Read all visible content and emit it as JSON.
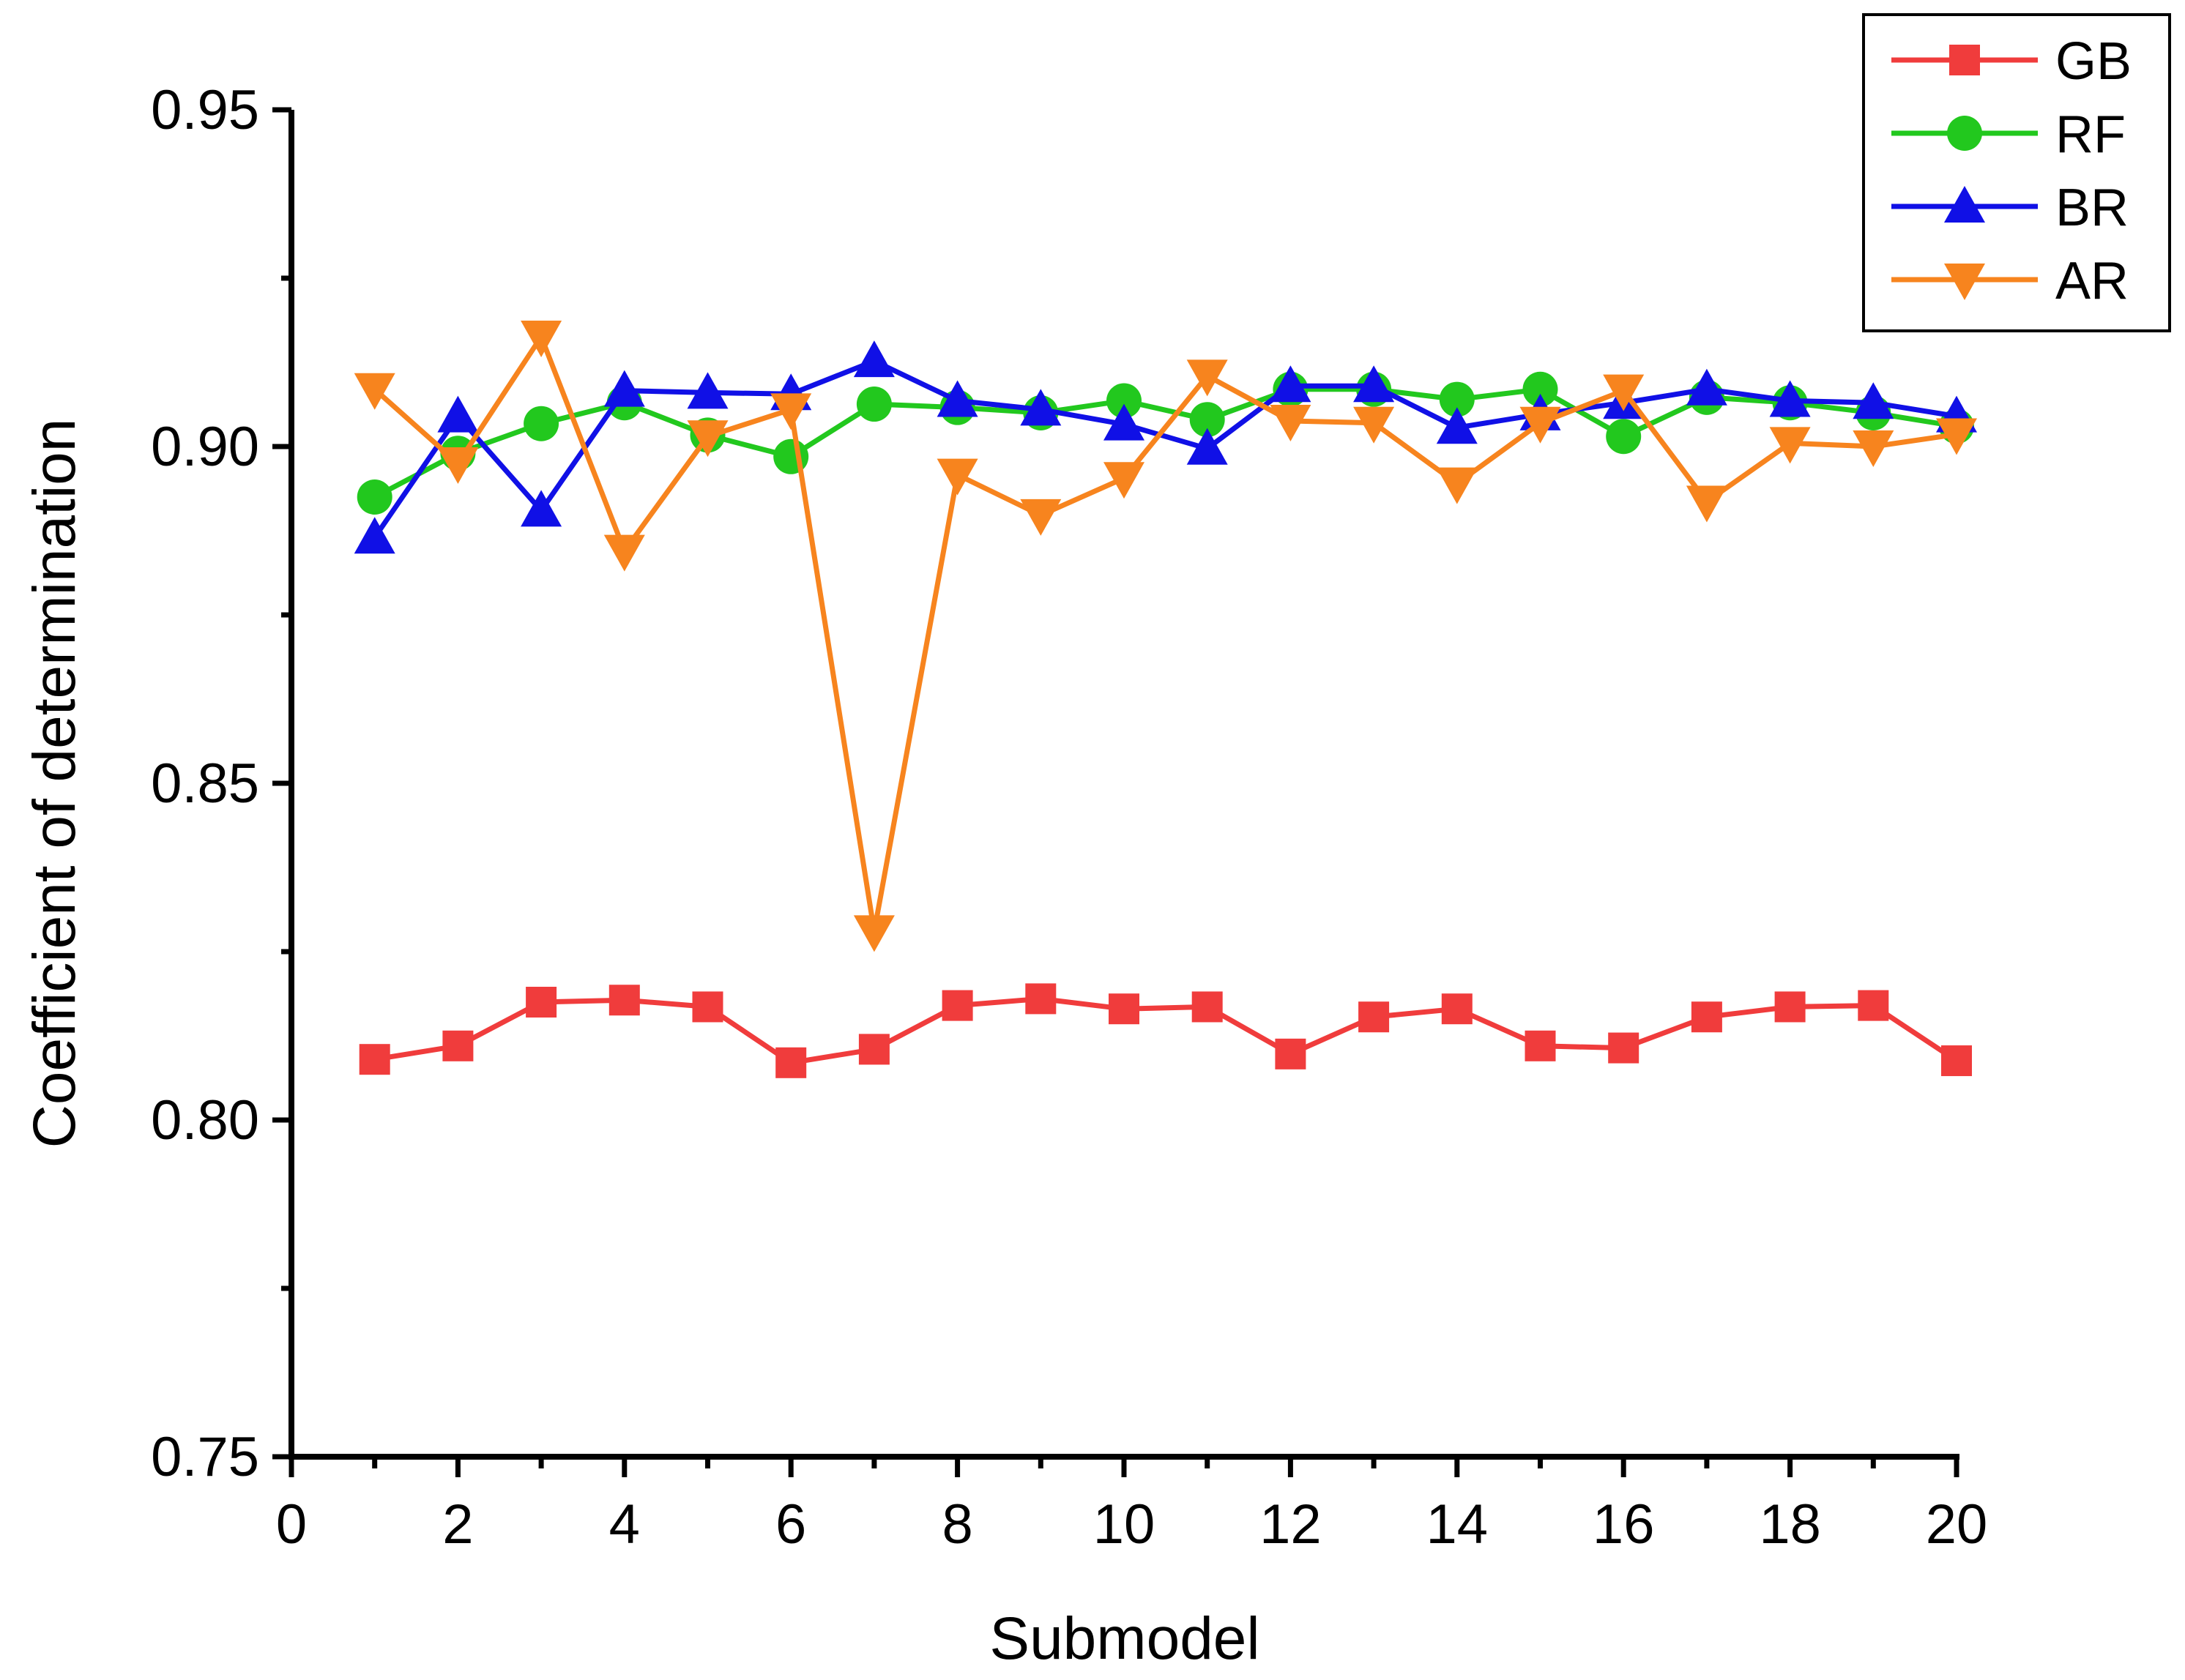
{
  "chart_data": {
    "type": "line",
    "title": "",
    "xlabel": "Submodel",
    "ylabel": "Coefficient of determination",
    "xlim": [
      0,
      20
    ],
    "ylim": [
      0.75,
      0.95
    ],
    "x_major_ticks": [
      0,
      2,
      4,
      6,
      8,
      10,
      12,
      14,
      16,
      18,
      20
    ],
    "x_tick_labels": [
      "0",
      "2",
      "4",
      "6",
      "8",
      "10",
      "12",
      "14",
      "16",
      "18",
      "20"
    ],
    "x_minor_ticks": [
      1,
      3,
      5,
      7,
      9,
      11,
      13,
      15,
      17,
      19
    ],
    "y_major_ticks": [
      0.75,
      0.8,
      0.85,
      0.9,
      0.95
    ],
    "y_tick_labels": [
      "0.75",
      "0.80",
      "0.85",
      "0.90",
      "0.95"
    ],
    "y_minor_ticks": [
      0.775,
      0.825,
      0.875,
      0.925
    ],
    "grid": false,
    "legend_position": "top-right",
    "x": [
      1,
      2,
      3,
      4,
      5,
      6,
      7,
      8,
      9,
      10,
      11,
      12,
      13,
      14,
      15,
      16,
      17,
      18,
      19,
      20
    ],
    "series": [
      {
        "name": "GB",
        "color": "#f03c3c",
        "marker": "square",
        "values": [
          0.809,
          0.811,
          0.8175,
          0.8178,
          0.8168,
          0.8085,
          0.8105,
          0.817,
          0.818,
          0.8165,
          0.8168,
          0.8098,
          0.8153,
          0.8165,
          0.811,
          0.8107,
          0.8153,
          0.8168,
          0.817,
          0.8088
        ]
      },
      {
        "name": "RF",
        "color": "#22c81e",
        "marker": "circle",
        "values": [
          0.8925,
          0.899,
          0.9034,
          0.9065,
          0.9017,
          0.8985,
          0.9063,
          0.9058,
          0.905,
          0.9068,
          0.904,
          0.9085,
          0.9085,
          0.907,
          0.9085,
          0.9015,
          0.9073,
          0.9065,
          0.905,
          0.903
        ]
      },
      {
        "name": "BR",
        "color": "#1010e6",
        "marker": "triangle-up",
        "values": [
          0.8865,
          0.9045,
          0.8905,
          0.9083,
          0.908,
          0.9078,
          0.9127,
          0.9068,
          0.9055,
          0.9033,
          0.8997,
          0.909,
          0.909,
          0.9028,
          0.9048,
          0.9065,
          0.9085,
          0.9068,
          0.9065,
          0.9045
        ]
      },
      {
        "name": "AR",
        "color": "#f7841e",
        "marker": "triangle-down",
        "values": [
          0.9085,
          0.8975,
          0.9163,
          0.8845,
          0.9015,
          0.9055,
          0.828,
          0.8958,
          0.8898,
          0.8953,
          0.9105,
          0.9038,
          0.9035,
          0.8945,
          0.9035,
          0.9083,
          0.8918,
          0.9005,
          0.9,
          0.9018
        ]
      }
    ]
  }
}
